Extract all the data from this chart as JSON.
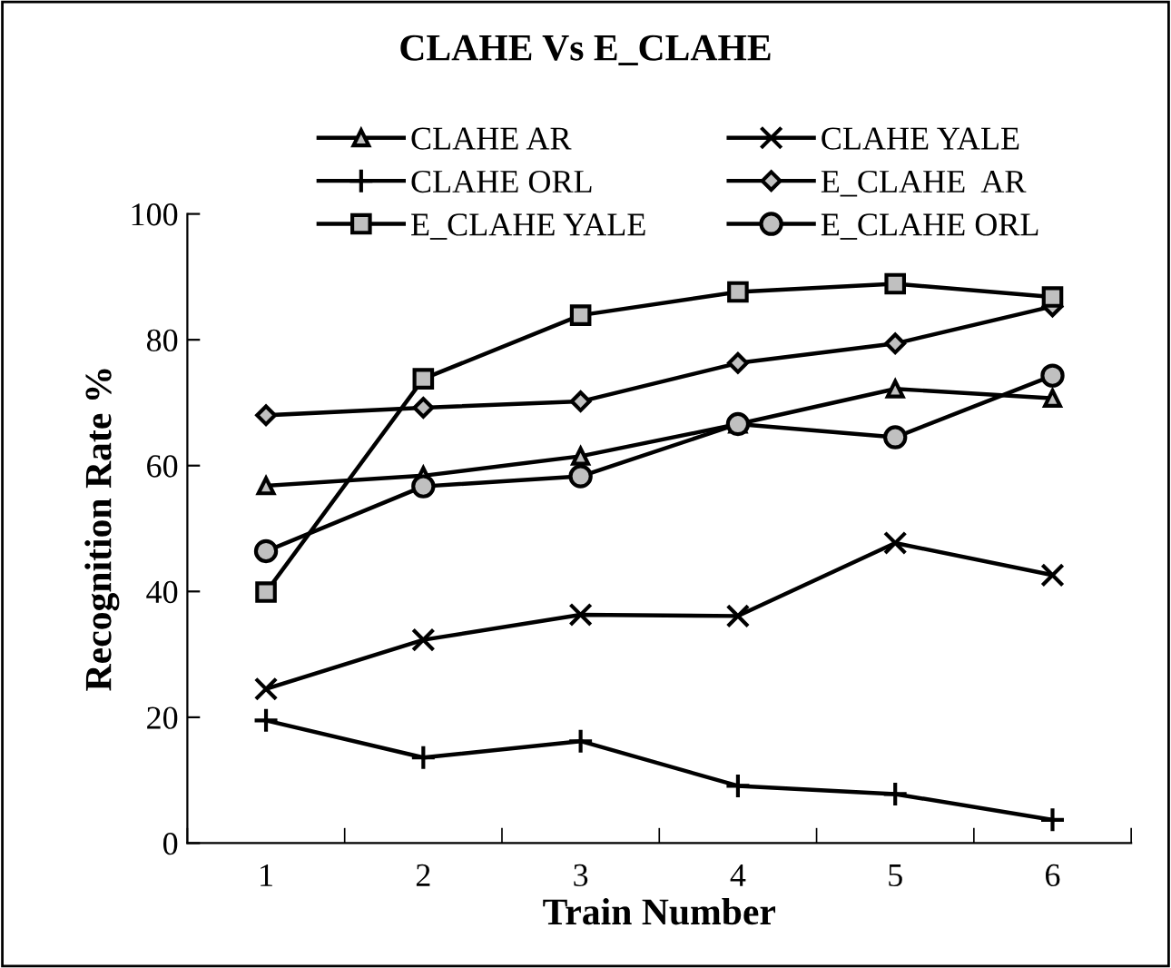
{
  "chart_data": {
    "type": "line",
    "title": "CLAHE Vs E_CLAHE",
    "xlabel": "Train Number",
    "ylabel": "Recognition Rate %",
    "categories": [
      "1",
      "2",
      "3",
      "4",
      "5",
      "6"
    ],
    "series": [
      {
        "name": "CLAHE AR",
        "color": "#000000",
        "marker": "triangle",
        "values": [
          56.8,
          58.4,
          61.5,
          66.6,
          72.2,
          70.7
        ]
      },
      {
        "name": "CLAHE YALE",
        "color": "#000000",
        "marker": "cross",
        "values": [
          24.5,
          32.3,
          36.3,
          36.1,
          47.7,
          42.6
        ]
      },
      {
        "name": "CLAHE ORL",
        "color": "#000000",
        "marker": "plus",
        "values": [
          19.5,
          13.6,
          16.2,
          9.1,
          7.8,
          3.7
        ]
      },
      {
        "name": "E_CLAHE  AR",
        "color": "#000000",
        "marker": "diamond",
        "values": [
          68.0,
          69.2,
          70.2,
          76.3,
          79.4,
          85.3
        ]
      },
      {
        "name": "E_CLAHE YALE",
        "color": "#000000",
        "marker": "square",
        "values": [
          39.9,
          73.8,
          83.9,
          87.6,
          88.9,
          86.8
        ]
      },
      {
        "name": "E_CLAHE ORL",
        "color": "#000000",
        "marker": "circle",
        "values": [
          46.4,
          56.7,
          58.3,
          66.6,
          64.5,
          74.3
        ]
      }
    ],
    "ylim": [
      0,
      100
    ],
    "yticks": [
      0,
      20,
      40,
      60,
      80,
      100
    ],
    "grid": false,
    "legend": "top"
  }
}
